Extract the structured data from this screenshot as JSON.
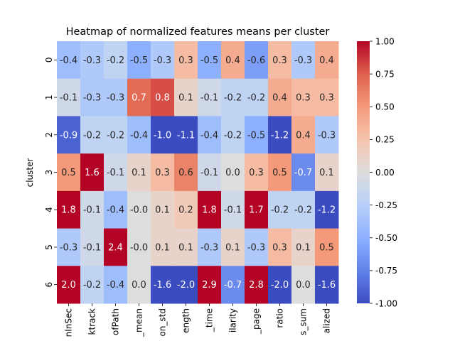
{
  "chart_data": {
    "type": "heatmap",
    "title": "Heatmap of normalized features means per cluster",
    "ylabel": "cluster",
    "xlabel": "",
    "rows": [
      "0",
      "1",
      "2",
      "3",
      "4",
      "5",
      "6"
    ],
    "columns": [
      "nInSec",
      "ktrack",
      "ofPath",
      "_mean",
      "on_std",
      "ength",
      "_time",
      "ilarity",
      "_page",
      "ratio",
      "s_sum",
      "alized"
    ],
    "values": [
      [
        -0.4,
        -0.3,
        -0.2,
        -0.5,
        -0.3,
        0.3,
        -0.5,
        0.4,
        -0.6,
        0.3,
        -0.3,
        0.4
      ],
      [
        -0.1,
        -0.3,
        -0.3,
        0.7,
        0.8,
        0.1,
        -0.1,
        -0.2,
        -0.2,
        0.4,
        0.3,
        0.3
      ],
      [
        -0.9,
        -0.2,
        -0.2,
        -0.4,
        -1.0,
        -1.1,
        -0.4,
        -0.2,
        -0.5,
        -1.2,
        0.4,
        -0.3
      ],
      [
        0.5,
        1.6,
        -0.1,
        0.1,
        0.3,
        0.6,
        -0.1,
        0.0,
        0.3,
        0.5,
        -0.7,
        0.1
      ],
      [
        1.8,
        -0.1,
        -0.4,
        -0.0,
        0.1,
        0.2,
        1.8,
        -0.1,
        1.7,
        -0.2,
        -0.2,
        -1.2
      ],
      [
        -0.3,
        -0.1,
        2.4,
        -0.0,
        0.1,
        0.1,
        -0.3,
        0.1,
        -0.3,
        0.3,
        0.1,
        0.5
      ],
      [
        2.0,
        -0.2,
        -0.4,
        0.0,
        -1.6,
        -2.0,
        2.9,
        -0.7,
        2.8,
        -2.0,
        0.0,
        -1.6
      ]
    ],
    "cell_labels": [
      [
        "-0.4",
        "-0.3",
        "-0.2",
        "-0.5",
        "-0.3",
        "0.3",
        "-0.5",
        "0.4",
        "-0.6",
        "0.3",
        "-0.3",
        "0.4"
      ],
      [
        "-0.1",
        "-0.3",
        "-0.3",
        "0.7",
        "0.8",
        "0.1",
        "-0.1",
        "-0.2",
        "-0.2",
        "0.4",
        "0.3",
        "0.3"
      ],
      [
        "-0.9",
        "-0.2",
        "-0.2",
        "-0.4",
        "-1.0",
        "-1.1",
        "-0.4",
        "-0.2",
        "-0.5",
        "-1.2",
        "0.4",
        "-0.3"
      ],
      [
        "0.5",
        "1.6",
        "-0.1",
        "0.1",
        "0.3",
        "0.6",
        "-0.1",
        "0.0",
        "0.3",
        "0.5",
        "-0.7",
        "0.1"
      ],
      [
        "1.8",
        "-0.1",
        "-0.4",
        "-0.0",
        "0.1",
        "0.2",
        "1.8",
        "-0.1",
        "1.7",
        "-0.2",
        "-0.2",
        "-1.2"
      ],
      [
        "-0.3",
        "-0.1",
        "2.4",
        "-0.0",
        "0.1",
        "0.1",
        "-0.3",
        "0.1",
        "-0.3",
        "0.3",
        "0.1",
        "0.5"
      ],
      [
        "2.0",
        "-0.2",
        "-0.4",
        "0.0",
        "-1.6",
        "-2.0",
        "2.9",
        "-0.7",
        "2.8",
        "-2.0",
        "0.0",
        "-1.6"
      ]
    ],
    "color_range": [
      -1.0,
      1.0
    ],
    "colormap": "coolwarm",
    "colorbar_ticks": [
      "-1.00",
      "-0.75",
      "-0.50",
      "-0.25",
      "0.00",
      "0.25",
      "0.50",
      "0.75",
      "1.00"
    ],
    "colorbar_values": [
      -1.0,
      -0.75,
      -0.5,
      -0.25,
      0.0,
      0.25,
      0.5,
      0.75,
      1.0
    ],
    "grid": false,
    "legend": "colorbar-right"
  }
}
